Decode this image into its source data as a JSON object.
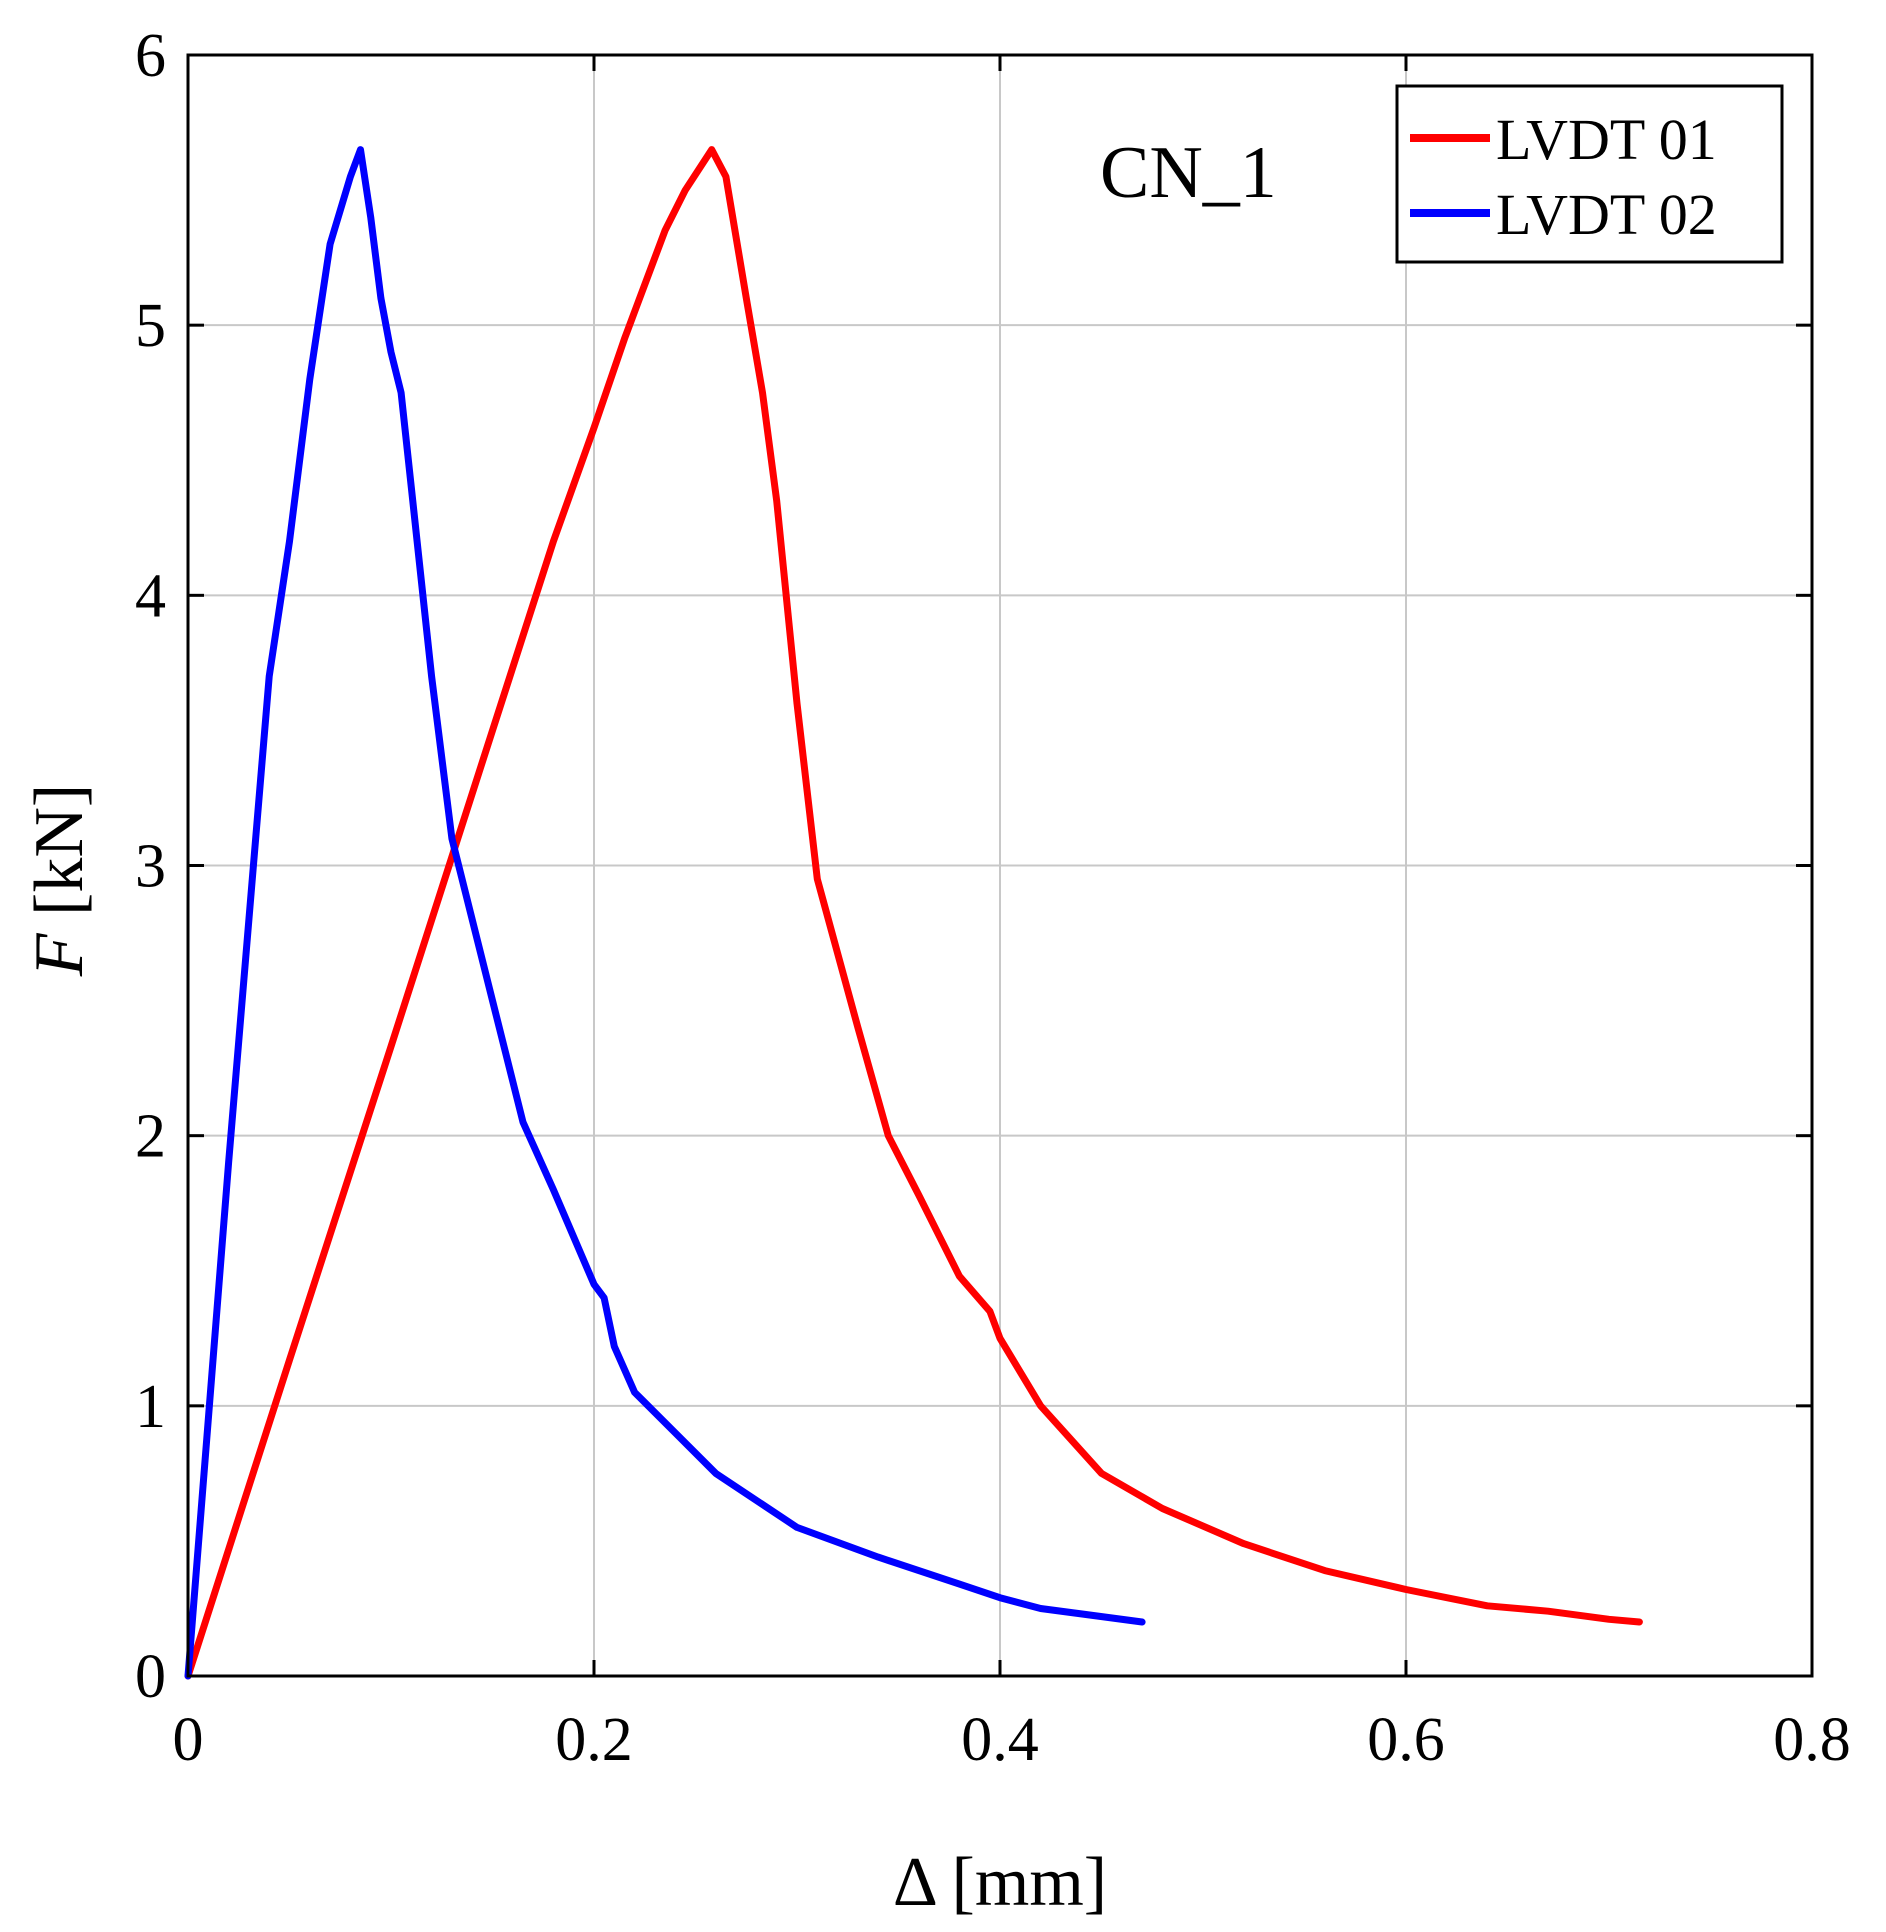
{
  "chart_data": {
    "type": "line",
    "xlabel": "Δ [mm]",
    "ylabel_italic": "F",
    "ylabel_unit": " [kN]",
    "xlim": [
      0,
      0.8
    ],
    "ylim": [
      0,
      6
    ],
    "xticks": [
      0,
      0.2,
      0.4,
      0.6,
      0.8
    ],
    "xtick_labels": [
      "0",
      "0.2",
      "0.4",
      "0.6",
      "0.8"
    ],
    "yticks": [
      0,
      1,
      2,
      3,
      4,
      5,
      6
    ],
    "ytick_labels": [
      "0",
      "1",
      "2",
      "3",
      "4",
      "5",
      "6"
    ],
    "grid": true,
    "annotation": "CN_1",
    "legend_position": "top-right",
    "series": [
      {
        "name": "LVDT 01",
        "color": "#ff0000",
        "x": [
          0,
          0.05,
          0.1,
          0.15,
          0.18,
          0.2,
          0.215,
          0.22,
          0.235,
          0.245,
          0.258,
          0.265,
          0.275,
          0.283,
          0.29,
          0.3,
          0.31,
          0.33,
          0.345,
          0.36,
          0.38,
          0.395,
          0.4,
          0.42,
          0.45,
          0.48,
          0.52,
          0.56,
          0.6,
          0.64,
          0.67,
          0.7,
          0.715
        ],
        "y": [
          0,
          1.17,
          2.33,
          3.5,
          4.2,
          4.62,
          4.95,
          5.05,
          5.35,
          5.5,
          5.65,
          5.55,
          5.1,
          4.75,
          4.35,
          3.6,
          2.95,
          2.4,
          2.0,
          1.78,
          1.48,
          1.35,
          1.25,
          1.0,
          0.75,
          0.62,
          0.49,
          0.39,
          0.32,
          0.26,
          0.24,
          0.21,
          0.2
        ]
      },
      {
        "name": "LVDT 02",
        "color": "#0000ff",
        "x": [
          0,
          0.02,
          0.04,
          0.05,
          0.06,
          0.07,
          0.08,
          0.085,
          0.09,
          0.095,
          0.1,
          0.105,
          0.11,
          0.12,
          0.13,
          0.15,
          0.165,
          0.18,
          0.2,
          0.205,
          0.21,
          0.22,
          0.24,
          0.26,
          0.3,
          0.34,
          0.38,
          0.4,
          0.42,
          0.44,
          0.47
        ],
        "y": [
          0,
          1.9,
          3.7,
          4.2,
          4.8,
          5.3,
          5.55,
          5.65,
          5.4,
          5.1,
          4.9,
          4.75,
          4.4,
          3.7,
          3.1,
          2.5,
          2.05,
          1.8,
          1.45,
          1.4,
          1.22,
          1.05,
          0.9,
          0.75,
          0.55,
          0.44,
          0.34,
          0.29,
          0.25,
          0.23,
          0.2
        ]
      }
    ]
  }
}
